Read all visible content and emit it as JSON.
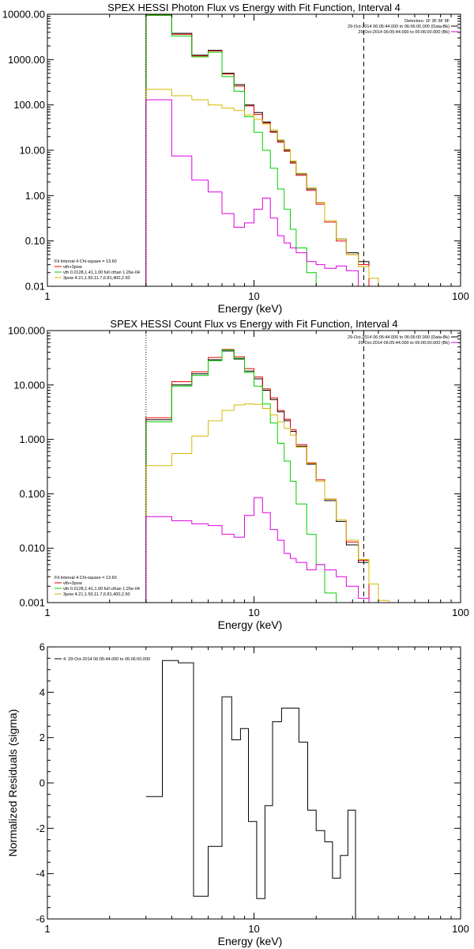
{
  "chart_data": [
    {
      "type": "line",
      "title": "SPEX HESSI Photon Flux vs Energy with Fit Function, Interval 4",
      "xlabel": "Energy (keV)",
      "xscale": "log",
      "yscale": "log",
      "xlim": [
        1,
        100
      ],
      "ylim": [
        0.01,
        10000
      ],
      "xticks": [
        {
          "v": 1,
          "label": "1"
        },
        {
          "v": 10,
          "label": "10"
        },
        {
          "v": 100,
          "label": "100"
        }
      ],
      "yticks": [
        {
          "v": 0.01,
          "label": "0.01"
        },
        {
          "v": 0.1,
          "label": "0.10"
        },
        {
          "v": 1,
          "label": "1.00"
        },
        {
          "v": 10,
          "label": "10.00"
        },
        {
          "v": 100,
          "label": "100.00"
        },
        {
          "v": 1000,
          "label": "1000.00"
        },
        {
          "v": 10000,
          "label": "10000.00"
        }
      ],
      "edges": [
        3,
        4,
        5,
        6,
        7,
        8,
        9,
        10,
        11,
        12,
        13,
        14,
        15,
        16,
        18,
        20,
        22,
        25,
        28,
        32,
        36,
        40,
        45
      ],
      "vlines": [
        {
          "x": 3,
          "style": "dotted"
        },
        {
          "x": 34,
          "style": "dashed"
        }
      ],
      "annotations_right": [
        {
          "text": "Detectors: 1F 3F 6F 9F",
          "color": "#000000"
        },
        {
          "text": "29-Oct-2014 06:05:44.000 to 06:06:00.000 (Data-Bk)",
          "color": "#000000"
        },
        {
          "text": "29-Oct-2014 06:05:44.000 to 06:06:00.000 (Bk)",
          "color": "#e000e0"
        }
      ],
      "legend_left": [
        {
          "text": "Fit Interval 4   Chi-square = 13.60",
          "color": null
        },
        {
          "text": "vth+3pow",
          "color": "#e00000"
        },
        {
          "text": "vth 0.0128,1.41,1.00  full cthan 1.26e-04",
          "color": "#00d000"
        },
        {
          "text": "3pow 4.21,1.50,11.7,6.81,400,2.50",
          "color": "#d4b800"
        }
      ],
      "series": [
        {
          "color": "#000000",
          "values": [
            9500,
            3800,
            1250,
            1600,
            500,
            280,
            100,
            68,
            42,
            26,
            16,
            10,
            5.5,
            3,
            1.4,
            0.7,
            0.28,
            0.11,
            0.055,
            0.035,
            null,
            null
          ]
        },
        {
          "color": "#e00000",
          "values": [
            9500,
            3600,
            1200,
            1550,
            480,
            260,
            95,
            62,
            40,
            25,
            15,
            9.5,
            5.2,
            2.8,
            1.3,
            0.65,
            0.26,
            0.1,
            0.05,
            0.03,
            null,
            null
          ]
        },
        {
          "color": "#00d000",
          "values": [
            9500,
            3300,
            1150,
            1450,
            420,
            200,
            55,
            25,
            10,
            4,
            1.4,
            0.5,
            0.18,
            0.07,
            0.02,
            0.01,
            null,
            null,
            null,
            null,
            null,
            null
          ]
        },
        {
          "color": "#d4b800",
          "values": [
            220,
            160,
            130,
            100,
            85,
            75,
            60,
            48,
            38,
            28,
            17,
            10.5,
            5.8,
            3.1,
            1.5,
            0.7,
            0.28,
            0.11,
            0.05,
            0.027,
            0.015,
            null
          ]
        },
        {
          "color": "#e000e0",
          "values": [
            130,
            7.5,
            2.2,
            1.2,
            0.4,
            0.2,
            0.25,
            0.5,
            0.88,
            0.32,
            0.13,
            0.09,
            0.07,
            0.055,
            0.035,
            0.03,
            0.025,
            0.028,
            0.022,
            0.01,
            null,
            null
          ]
        }
      ]
    },
    {
      "type": "line",
      "title": "SPEX HESSI Count Flux vs Energy with Fit Function, Interval 4",
      "xlabel": "Energy (keV)",
      "xscale": "log",
      "yscale": "log",
      "xlim": [
        1,
        100
      ],
      "ylim": [
        0.001,
        100
      ],
      "xticks": [
        {
          "v": 1,
          "label": "1"
        },
        {
          "v": 10,
          "label": "10"
        },
        {
          "v": 100,
          "label": "100"
        }
      ],
      "yticks": [
        {
          "v": 0.001,
          "label": "0.001"
        },
        {
          "v": 0.01,
          "label": "0.010"
        },
        {
          "v": 0.1,
          "label": "0.100"
        },
        {
          "v": 1,
          "label": "1.000"
        },
        {
          "v": 10,
          "label": "10.000"
        },
        {
          "v": 100,
          "label": "100.000"
        }
      ],
      "edges": [
        3,
        4,
        5,
        6,
        7,
        8,
        9,
        10,
        11,
        12,
        13,
        14,
        15,
        16,
        18,
        20,
        22,
        25,
        28,
        32,
        36,
        40,
        45
      ],
      "vlines": [
        {
          "x": 3,
          "style": "dotted"
        },
        {
          "x": 34,
          "style": "dashed"
        }
      ],
      "annotations_right": [
        {
          "text": "29-Oct-2014 06:05:44.000 to 06:06:00.000 (Data-Bk)",
          "color": "#000000"
        },
        {
          "text": "29-Oct-2014 06:05:44.000 to 06:06:00.000 (Bk)",
          "color": "#e000e0"
        }
      ],
      "legend_left": [
        {
          "text": "Fit Interval 4   Chi-square = 13.60",
          "color": null
        },
        {
          "text": "vth+3pow",
          "color": "#e00000"
        },
        {
          "text": "vth 0.0128,1.41,1.00  full cthan 1.26e-04",
          "color": "#00d000"
        },
        {
          "text": "3pow 4.21,1.50,11.7,6.81,400,2.50",
          "color": "#d4b800"
        }
      ],
      "series": [
        {
          "color": "#000000",
          "values": [
            2.3,
            10,
            16,
            29,
            42,
            30,
            18,
            13,
            8,
            5.4,
            3.2,
            2.2,
            1.4,
            0.75,
            0.35,
            0.17,
            0.075,
            0.031,
            0.0115,
            0.0055,
            null,
            null
          ]
        },
        {
          "color": "#e00000",
          "values": [
            2.5,
            11.5,
            17.5,
            32,
            45,
            33,
            20,
            14,
            8.5,
            5.8,
            3.4,
            2.35,
            1.5,
            0.8,
            0.37,
            0.18,
            0.08,
            0.033,
            0.013,
            0.006,
            null,
            null
          ]
        },
        {
          "color": "#00d000",
          "values": [
            2.1,
            9.5,
            15,
            28,
            44,
            31,
            17,
            9.5,
            4.5,
            2,
            0.85,
            0.4,
            0.17,
            0.065,
            0.018,
            0.005,
            0.0015,
            null,
            null,
            null,
            null,
            null
          ]
        },
        {
          "color": "#d4b800",
          "values": [
            0.33,
            0.55,
            1.15,
            2.2,
            3.4,
            4.3,
            4.5,
            4.4,
            3.7,
            2.8,
            2.1,
            1.6,
            1.2,
            0.72,
            0.36,
            0.17,
            0.079,
            0.033,
            0.014,
            0.0062,
            0.0022,
            0.0011
          ]
        },
        {
          "color": "#e000e0",
          "values": [
            0.038,
            0.032,
            0.028,
            0.026,
            0.018,
            0.016,
            0.04,
            0.085,
            0.045,
            0.022,
            0.014,
            0.008,
            0.0065,
            0.0055,
            0.004,
            0.005,
            0.004,
            0.003,
            0.002,
            0.0012,
            null,
            null
          ]
        }
      ]
    },
    {
      "type": "line",
      "title": "",
      "xlabel": "Energy (keV)",
      "ylabel": "Normalized Residuals (sigma)",
      "xscale": "log",
      "yscale": "linear",
      "xlim": [
        1,
        100
      ],
      "ylim": [
        -6,
        6
      ],
      "xticks": [
        {
          "v": 1,
          "label": "1"
        },
        {
          "v": 10,
          "label": "10"
        },
        {
          "v": 100,
          "label": "100"
        }
      ],
      "yticks": [
        {
          "v": -6,
          "label": "-6"
        },
        {
          "v": -4,
          "label": "-4"
        },
        {
          "v": -2,
          "label": "-2"
        },
        {
          "v": 0,
          "label": "0"
        },
        {
          "v": 2,
          "label": "2"
        },
        {
          "v": 4,
          "label": "4"
        },
        {
          "v": 6,
          "label": "6"
        }
      ],
      "edges": [
        3,
        3.6,
        4.3,
        5.1,
        6,
        7,
        7.8,
        8.6,
        9.4,
        10.3,
        11.3,
        12.3,
        13.6,
        15,
        16.5,
        18.2,
        20,
        22,
        24,
        26.2,
        28.5,
        31,
        34
      ],
      "annotations_right": [],
      "legend_left": [
        {
          "text": "4. 29-Oct-2014 06:05:44.000 to 06:06:00.000",
          "color": "#000000"
        }
      ],
      "series": [
        {
          "color": "#000000",
          "values": [
            -0.6,
            5.4,
            5.3,
            -5.0,
            -2.8,
            3.8,
            1.9,
            2.4,
            -1.7,
            -5.1,
            -1.0,
            2.7,
            3.3,
            3.3,
            1.8,
            -1.2,
            -2.1,
            -2.6,
            -4.2,
            -3.2,
            -1.2,
            -6
          ]
        }
      ]
    }
  ]
}
